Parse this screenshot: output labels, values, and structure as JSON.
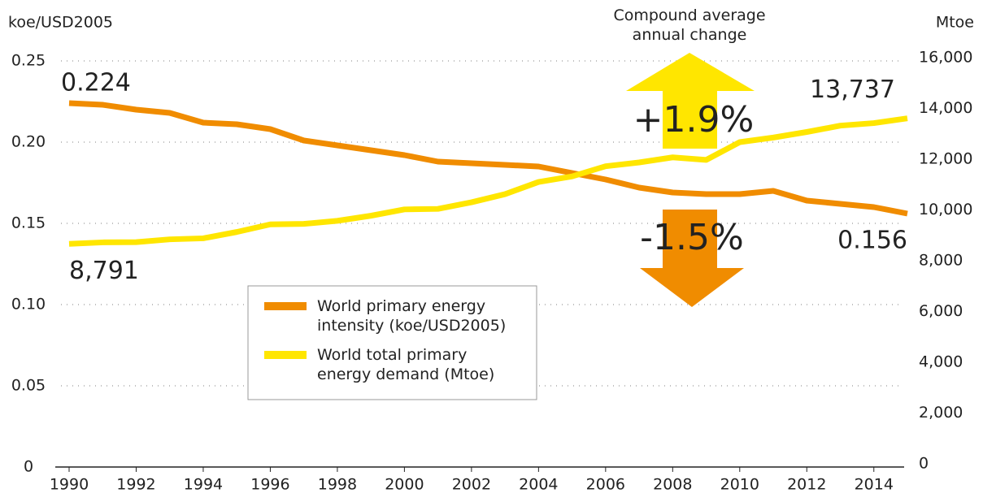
{
  "chart_data": {
    "type": "line",
    "y_label": "koe/USD2005",
    "y2_label": "Mtoe",
    "x": [
      1990,
      1991,
      1992,
      1993,
      1994,
      1995,
      1996,
      1997,
      1998,
      1999,
      2000,
      2001,
      2002,
      2003,
      2004,
      2005,
      2006,
      2007,
      2008,
      2009,
      2010,
      2011,
      2012,
      2013,
      2014,
      2015
    ],
    "series": [
      {
        "name": "World primary energy intensity (koe/USD2005)",
        "color": "#f08c00",
        "values": [
          0.224,
          0.223,
          0.22,
          0.218,
          0.212,
          0.211,
          0.208,
          0.201,
          0.198,
          0.195,
          0.192,
          0.188,
          0.187,
          0.186,
          0.185,
          0.181,
          0.177,
          0.172,
          0.169,
          0.168,
          0.168,
          0.17,
          0.164,
          0.162,
          0.16,
          0.156
        ],
        "value_labels": [
          "0.224",
          null,
          null,
          null,
          null,
          null,
          null,
          null,
          null,
          null,
          null,
          null,
          null,
          null,
          null,
          null,
          null,
          null,
          null,
          null,
          null,
          null,
          null,
          null,
          null,
          "0.156"
        ]
      },
      {
        "name": "World total primary energy demand (Mtoe)",
        "color": "#ffe600",
        "axis": "y2",
        "values": [
          8791,
          8850,
          8860,
          8970,
          9010,
          9260,
          9560,
          9580,
          9700,
          9900,
          10150,
          10170,
          10430,
          10750,
          11230,
          11450,
          11850,
          12000,
          12200,
          12100,
          12800,
          12980,
          13200,
          13450,
          13550,
          13737
        ],
        "value_labels": [
          "8,791",
          null,
          null,
          null,
          null,
          null,
          null,
          null,
          null,
          null,
          null,
          null,
          null,
          null,
          null,
          null,
          null,
          null,
          null,
          null,
          null,
          null,
          null,
          null,
          null,
          "13,737"
        ]
      }
    ],
    "annotations": [
      "Compound average annual change",
      "+1.9%",
      "-1.5%"
    ],
    "xlim": [
      1990,
      2015
    ],
    "xticks": [
      1990,
      1992,
      1994,
      1996,
      1998,
      2000,
      2002,
      2004,
      2006,
      2008,
      2010,
      2012,
      2014
    ],
    "ylim": [
      0,
      0.25
    ],
    "yticks": [
      0,
      0.05,
      {
        "value": 0.1,
        "label": "0.10"
      },
      0.15,
      {
        "value": 0.2,
        "label": "0.20"
      },
      0.25
    ],
    "y2lim": [
      0,
      16000
    ],
    "y2ticks": [
      0,
      {
        "value": 2000,
        "label": "2,000"
      },
      {
        "value": 4000,
        "label": "4,000"
      },
      {
        "value": 6000,
        "label": "6,000"
      },
      {
        "value": 8000,
        "label": "8,000"
      },
      {
        "value": 10000,
        "label": "10,000"
      },
      {
        "value": 12000,
        "label": "12,000"
      },
      {
        "value": 14000,
        "label": "14,000"
      },
      {
        "value": 16000,
        "label": "16,000"
      }
    ],
    "grid": true
  }
}
